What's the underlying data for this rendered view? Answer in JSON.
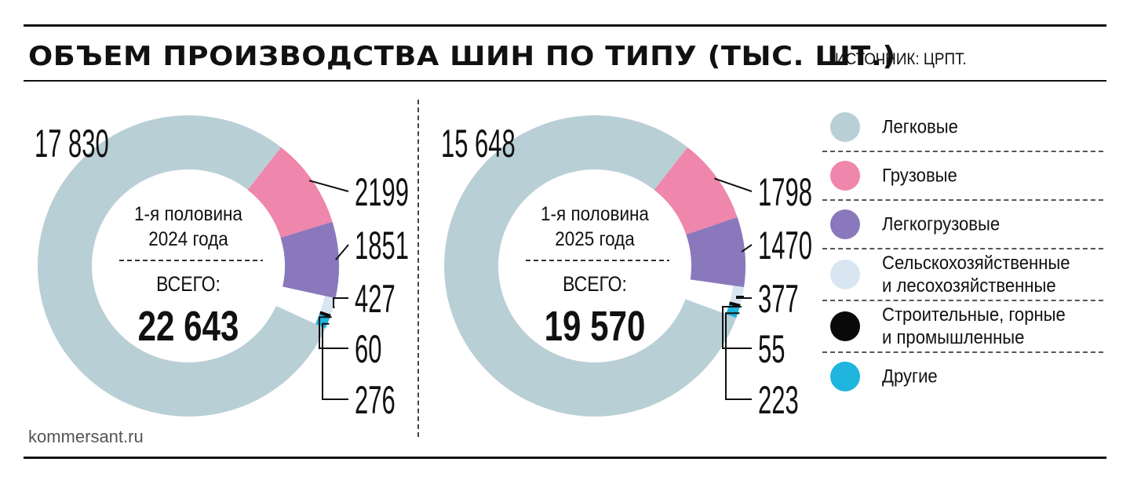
{
  "header": {
    "title": "ОБЪЕМ ПРОИЗВОДСТВА ШИН ПО ТИПУ (ТЫС. ШТ.)",
    "source": "ИСТОЧНИК: ЦРПТ."
  },
  "footer": {
    "credit": "kommersant.ru"
  },
  "chart_data": [
    {
      "type": "pie",
      "period_label": "1-я половина\n2024 года",
      "total_label": "ВСЕГО:",
      "total_value": "22 643",
      "slices": [
        {
          "category": "Легковые",
          "value": 17830,
          "label": "17 830"
        },
        {
          "category": "Грузовые",
          "value": 2199,
          "label": "2199"
        },
        {
          "category": "Легкогрузовые",
          "value": 1851,
          "label": "1851"
        },
        {
          "category": "Сельскохозяйственные и лесохозяйственные",
          "value": 427,
          "label": "427"
        },
        {
          "category": "Строительные, горные и промышленные",
          "value": 60,
          "label": "60"
        },
        {
          "category": "Другие",
          "value": 276,
          "label": "276"
        }
      ]
    },
    {
      "type": "pie",
      "period_label": "1-я половина\n2025 года",
      "total_label": "ВСЕГО:",
      "total_value": "19 570",
      "slices": [
        {
          "category": "Легковые",
          "value": 15648,
          "label": "15 648"
        },
        {
          "category": "Грузовые",
          "value": 1798,
          "label": "1798"
        },
        {
          "category": "Легкогрузовые",
          "value": 1470,
          "label": "1470"
        },
        {
          "category": "Сельскохозяйственные и лесохозяйственные",
          "value": 377,
          "label": "377"
        },
        {
          "category": "Строительные, горные и промышленные",
          "value": 55,
          "label": "55"
        },
        {
          "category": "Другие",
          "value": 223,
          "label": "223"
        }
      ]
    }
  ],
  "legend": {
    "items": [
      {
        "label": "Легковые",
        "color": "#b9cfd6"
      },
      {
        "label": "Грузовые",
        "color": "#ef86ab"
      },
      {
        "label": "Легкогрузовые",
        "color": "#8a78bc"
      },
      {
        "label": "Сельскохозяйственные\nи лесохозяйственные",
        "color": "#d9e6f2"
      },
      {
        "label": "Строительные, горные\nи промышленные",
        "color": "#0a0a0a"
      },
      {
        "label": "Другие",
        "color": "#1fb5dd"
      }
    ]
  }
}
